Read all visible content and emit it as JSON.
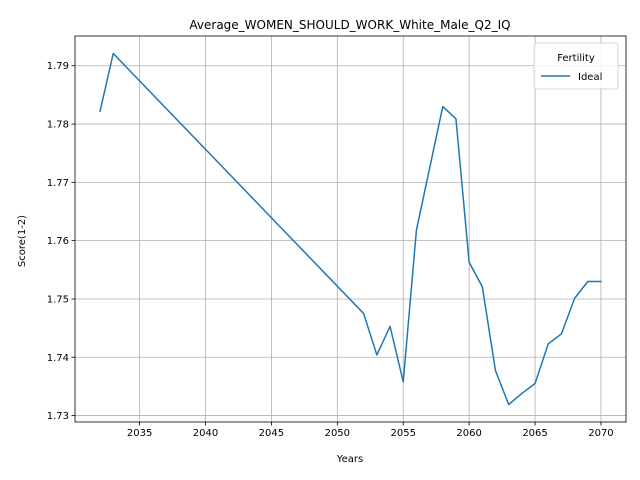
{
  "chart_data": {
    "type": "line",
    "title": "Average_WOMEN_SHOULD_WORK_White_Male_Q2_IQ",
    "xlabel": "Years",
    "ylabel": "Score(1-2)",
    "xlim": [
      2030.1,
      2071.9
    ],
    "ylim": [
      1.7289,
      1.7951
    ],
    "xticks": [
      2035,
      2040,
      2045,
      2050,
      2055,
      2060,
      2065,
      2070
    ],
    "yticks": [
      1.73,
      1.74,
      1.75,
      1.76,
      1.77,
      1.78,
      1.79
    ],
    "ytick_labels": [
      "1.73",
      "1.74",
      "1.75",
      "1.76",
      "1.77",
      "1.78",
      "1.79"
    ],
    "grid": true,
    "legend": {
      "title": "Fertility",
      "position": "top-right"
    },
    "series": [
      {
        "name": "Ideal",
        "color": "#1f77b4",
        "points": [
          [
            2032,
            1.7822
          ],
          [
            2033,
            1.7921
          ],
          [
            2052,
            1.7475
          ],
          [
            2053,
            1.7404
          ],
          [
            2054,
            1.7453
          ],
          [
            2055,
            1.7358
          ],
          [
            2056,
            1.7618
          ],
          [
            2058,
            1.783
          ],
          [
            2059,
            1.7809
          ],
          [
            2060,
            1.7563
          ],
          [
            2061,
            1.7521
          ],
          [
            2062,
            1.7377
          ],
          [
            2063,
            1.7319
          ],
          [
            2064,
            1.7338
          ],
          [
            2065,
            1.7355
          ],
          [
            2066,
            1.7423
          ],
          [
            2067,
            1.744
          ],
          [
            2068,
            1.7501
          ],
          [
            2069,
            1.753
          ],
          [
            2070,
            1.753
          ]
        ]
      }
    ]
  }
}
